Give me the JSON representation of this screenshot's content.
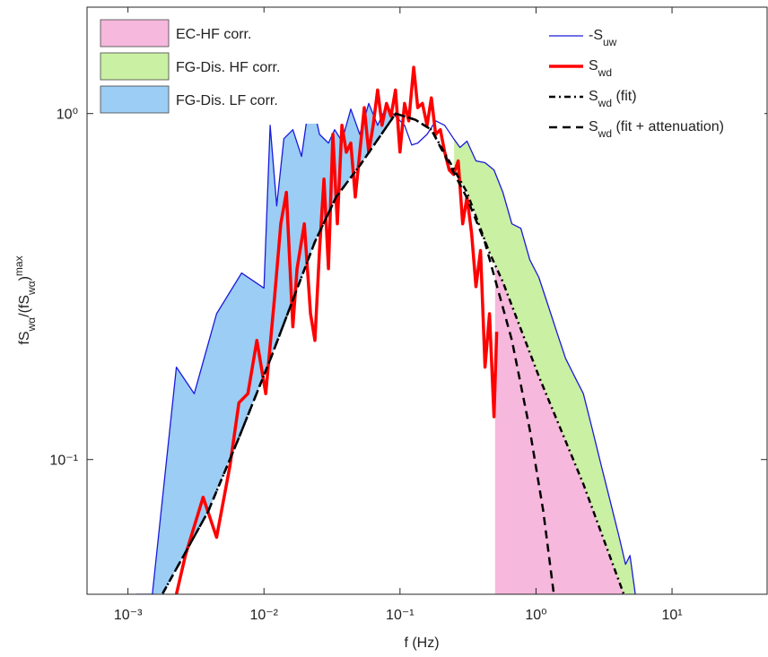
{
  "chart_data": {
    "type": "line",
    "xlabel": "f (Hz)",
    "ylabel": [
      "fS",
      "wα",
      "/(fS",
      "wα",
      ")",
      "max"
    ],
    "xscale": "log",
    "yscale": "log",
    "xlim": [
      0.0005,
      50
    ],
    "ylim": [
      0.0408,
      2.03
    ],
    "xticks": [
      {
        "value": 0.001,
        "label": "10⁻³"
      },
      {
        "value": 0.01,
        "label": "10⁻²"
      },
      {
        "value": 0.1,
        "label": "10⁻¹"
      },
      {
        "value": 1,
        "label": "10⁰"
      },
      {
        "value": 10,
        "label": "10¹"
      }
    ],
    "yticks": [
      {
        "value": 0.1,
        "label": "10⁻¹"
      },
      {
        "value": 1,
        "label": "10⁰"
      }
    ],
    "series": [
      {
        "name": [
          "-S",
          "uw"
        ],
        "color": "#1a1adb",
        "style": "thin",
        "x": [
          0.00115,
          0.00151,
          0.00227,
          0.00307,
          0.00448,
          0.00685,
          0.01,
          0.0111,
          0.0124,
          0.014,
          0.0163,
          0.0189,
          0.022,
          0.0256,
          0.0298,
          0.0331,
          0.0374,
          0.0435,
          0.0506,
          0.0589,
          0.0685,
          0.0796,
          0.0927,
          0.108,
          0.122,
          0.135,
          0.158,
          0.183,
          0.213,
          0.248,
          0.276,
          0.311,
          0.362,
          0.422,
          0.491,
          0.571,
          0.664,
          0.773,
          0.9,
          1.05,
          1.22,
          1.42,
          1.65,
          1.92,
          2.23,
          2.6,
          3.02,
          3.52,
          4.09,
          4.55,
          4.91,
          5.37
        ],
        "values": [
          0.0408,
          0.0408,
          0.185,
          0.155,
          0.264,
          0.346,
          0.313,
          0.925,
          0.541,
          0.846,
          0.898,
          0.752,
          1.14,
          0.871,
          0.822,
          0.898,
          0.832,
          1.03,
          0.871,
          1.07,
          0.925,
          1.05,
          0.982,
          0.925,
          0.811,
          0.822,
          0.871,
          0.953,
          0.925,
          0.846,
          0.798,
          0.832,
          0.73,
          0.721,
          0.687,
          0.592,
          0.48,
          0.466,
          0.378,
          0.336,
          0.281,
          0.234,
          0.196,
          0.174,
          0.155,
          0.122,
          0.096,
          0.0755,
          0.0596,
          0.0498,
          0.0528,
          0.0408
        ]
      },
      {
        "name": [
          "S",
          "wd"
        ],
        "color": "#ff0000",
        "style": "thick",
        "x": [
          0.00227,
          0.00264,
          0.00357,
          0.00448,
          0.00562,
          0.00654,
          0.00762,
          0.00886,
          0.0103,
          0.012,
          0.0133,
          0.0146,
          0.0163,
          0.0175,
          0.0198,
          0.022,
          0.0237,
          0.0256,
          0.0276,
          0.0298,
          0.0321,
          0.0346,
          0.0374,
          0.0403,
          0.0435,
          0.0469,
          0.0506,
          0.0546,
          0.0589,
          0.0635,
          0.0685,
          0.0738,
          0.0796,
          0.0859,
          0.0927,
          0.1,
          0.108,
          0.116,
          0.126,
          0.135,
          0.146,
          0.158,
          0.17,
          0.183,
          0.198,
          0.213,
          0.23,
          0.248,
          0.268,
          0.289,
          0.311,
          0.336,
          0.362,
          0.391,
          0.422,
          0.455,
          0.491,
          0.514
        ],
        "values": [
          0.0408,
          0.0528,
          0.0778,
          0.0596,
          0.096,
          0.146,
          0.155,
          0.221,
          0.155,
          0.298,
          0.481,
          0.592,
          0.242,
          0.356,
          0.48,
          0.264,
          0.221,
          0.402,
          0.647,
          0.356,
          0.871,
          0.48,
          0.925,
          0.773,
          0.822,
          0.574,
          0.773,
          1.04,
          0.773,
          0.925,
          1.17,
          0.925,
          1.07,
          0.982,
          1.17,
          0.774,
          1.07,
          0.953,
          1.36,
          1.04,
          1.07,
          0.925,
          1.11,
          0.871,
          0.898,
          0.774,
          0.687,
          0.667,
          0.73,
          0.48,
          0.574,
          0.452,
          0.316,
          0.402,
          0.185,
          0.264,
          0.133,
          0.234
        ]
      },
      {
        "name": [
          "S",
          "wd",
          " (fit)"
        ],
        "color": "#000000",
        "style": "dashdot",
        "x": [
          0.0018,
          0.0039,
          0.0065,
          0.0112,
          0.0237,
          0.034,
          0.0506,
          0.0929,
          0.13,
          0.17,
          0.311,
          0.45,
          0.571,
          1.05,
          2.23,
          4.4
        ],
        "values": [
          0.041,
          0.071,
          0.115,
          0.196,
          0.426,
          0.575,
          0.707,
          1.0,
          0.959,
          0.898,
          0.592,
          0.4,
          0.326,
          0.174,
          0.085,
          0.041
        ]
      },
      {
        "name": [
          "S",
          "wd",
          " (fit + attenuation)"
        ],
        "color": "#000000",
        "style": "dashed",
        "x": [
          0.0018,
          0.0039,
          0.0065,
          0.0112,
          0.0237,
          0.034,
          0.0506,
          0.0929,
          0.13,
          0.17,
          0.311,
          0.42,
          0.665,
          0.9,
          1.13,
          1.35
        ],
        "values": [
          0.041,
          0.071,
          0.115,
          0.196,
          0.426,
          0.575,
          0.707,
          1.0,
          0.959,
          0.898,
          0.57,
          0.426,
          0.221,
          0.122,
          0.071,
          0.041
        ]
      }
    ],
    "areas": [
      {
        "name": "EC-HF corr.",
        "color": "#f6b8dc",
        "between": [
          2,
          null
        ],
        "xmin": 0.5
      },
      {
        "name": "FG-Dis. HF corr.",
        "color": "#c9f0a3",
        "between": [
          0,
          2
        ],
        "xmin": 0.25
      },
      {
        "name": "FG-Dis. LF corr.",
        "color": "#9bcdf5",
        "between": [
          0,
          2
        ],
        "xmax": 0.1
      }
    ]
  }
}
